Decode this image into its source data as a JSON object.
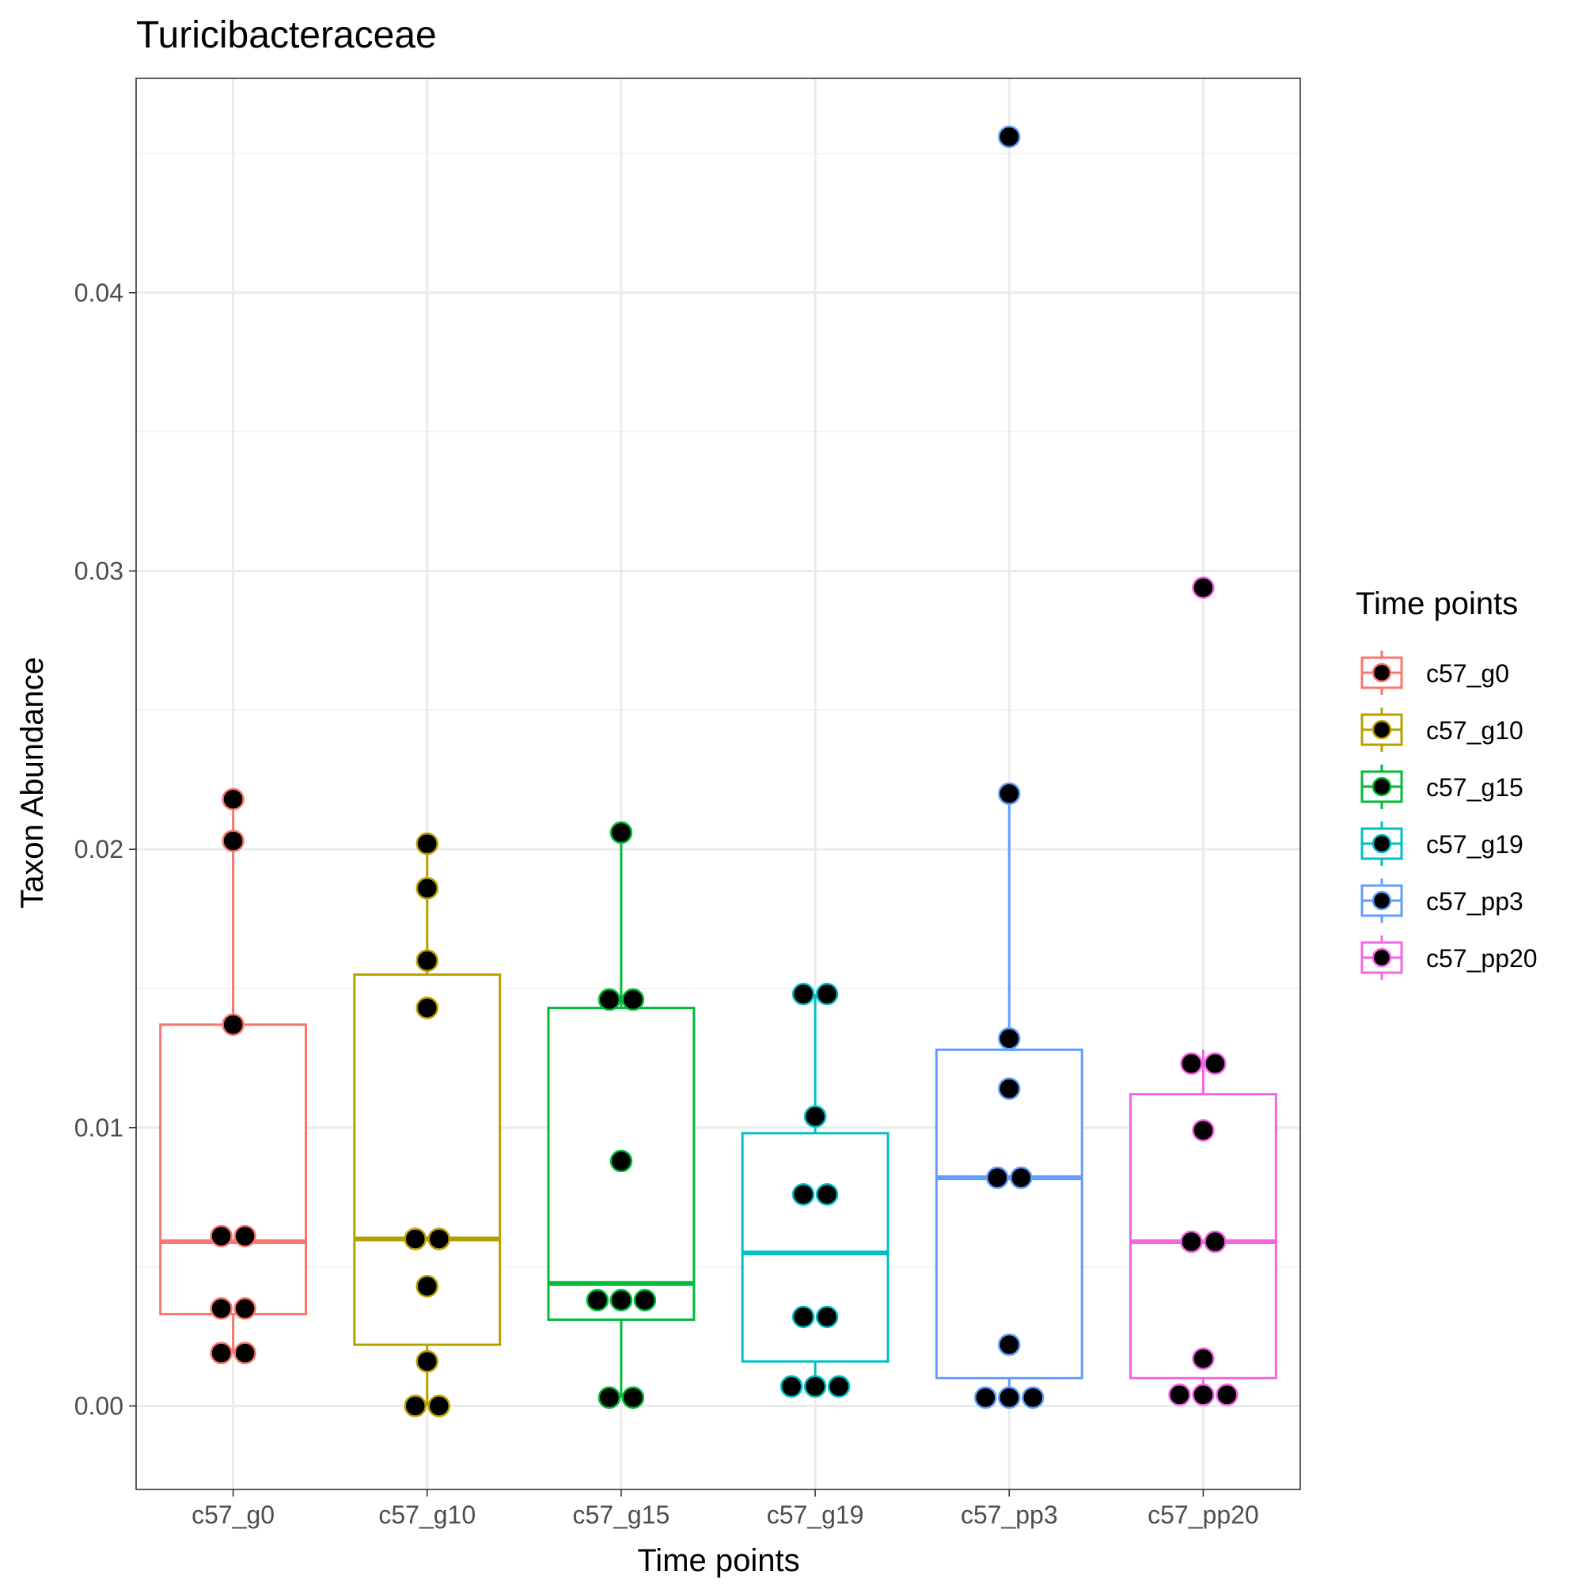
{
  "chart_data": {
    "type": "boxplot",
    "title": "Turicibacteraceae",
    "xlabel": "Time points",
    "ylabel": "Taxon Abundance",
    "ylim": [
      -0.003,
      0.0477
    ],
    "yticks": [
      0.0,
      0.01,
      0.02,
      0.03,
      0.04
    ],
    "ytick_labels": [
      "0.00",
      "0.01",
      "0.02",
      "0.03",
      "0.04"
    ],
    "grid": true,
    "legend": {
      "title": "Time points",
      "position": "right"
    },
    "groups": [
      {
        "name": "c57_g0",
        "color": "#F8766D",
        "box": {
          "whisker_low": 0.0019,
          "q1": 0.0033,
          "median": 0.0059,
          "q3": 0.0137,
          "whisker_high": 0.0218
        },
        "points": [
          0.0218,
          0.0203,
          0.0137,
          0.0061,
          0.0061,
          0.0035,
          0.0035,
          0.0019,
          0.0019
        ],
        "point_offsets": [
          0,
          0,
          0,
          -0.5,
          0.5,
          -0.5,
          0.5,
          -0.5,
          0.5
        ]
      },
      {
        "name": "c57_g10",
        "color": "#B79F00",
        "box": {
          "whisker_low": 0.0,
          "q1": 0.0022,
          "median": 0.006,
          "q3": 0.0155,
          "whisker_high": 0.0202
        },
        "points": [
          0.0202,
          0.0186,
          0.016,
          0.0143,
          0.006,
          0.006,
          0.0043,
          0.0016,
          0.0,
          0.0
        ],
        "point_offsets": [
          0,
          0,
          0,
          0,
          -0.5,
          0.5,
          0,
          0,
          -0.5,
          0.5
        ]
      },
      {
        "name": "c57_g15",
        "color": "#00BA38",
        "box": {
          "whisker_low": 0.0003,
          "q1": 0.0031,
          "median": 0.0044,
          "q3": 0.0143,
          "whisker_high": 0.0206
        },
        "points": [
          0.0206,
          0.0146,
          0.0146,
          0.0088,
          0.0038,
          0.0038,
          0.0038,
          0.0003,
          0.0003
        ],
        "point_offsets": [
          0,
          -0.5,
          0.5,
          0,
          -1,
          0,
          1,
          -0.5,
          0.5
        ]
      },
      {
        "name": "c57_g19",
        "color": "#00BFC4",
        "box": {
          "whisker_low": 0.0007,
          "q1": 0.0016,
          "median": 0.0055,
          "q3": 0.0098,
          "whisker_high": 0.0148
        },
        "points": [
          0.0148,
          0.0148,
          0.0104,
          0.0076,
          0.0076,
          0.0032,
          0.0032,
          0.0007,
          0.0007,
          0.0007
        ],
        "point_offsets": [
          -0.5,
          0.5,
          0,
          -0.5,
          0.5,
          -0.5,
          0.5,
          -1,
          0,
          1
        ]
      },
      {
        "name": "c57_pp3",
        "color": "#619CFF",
        "box": {
          "whisker_low": 0.0003,
          "q1": 0.001,
          "median": 0.0082,
          "q3": 0.0128,
          "whisker_high": 0.022
        },
        "points": [
          0.0456,
          0.022,
          0.0132,
          0.0114,
          0.0082,
          0.0082,
          0.0022,
          0.0003,
          0.0003,
          0.0003
        ],
        "point_offsets": [
          0,
          0,
          0,
          0,
          -0.5,
          0.5,
          0,
          -1,
          0,
          1
        ]
      },
      {
        "name": "c57_pp20",
        "color": "#F564E3",
        "box": {
          "whisker_low": 0.0004,
          "q1": 0.001,
          "median": 0.0059,
          "q3": 0.0112,
          "whisker_high": 0.0128
        },
        "points": [
          0.0294,
          0.0123,
          0.0123,
          0.0099,
          0.0059,
          0.0059,
          0.0017,
          0.0004,
          0.0004,
          0.0004
        ],
        "point_offsets": [
          0,
          -0.5,
          0.5,
          0,
          -0.5,
          0.5,
          0,
          -1,
          0,
          1
        ]
      }
    ]
  }
}
